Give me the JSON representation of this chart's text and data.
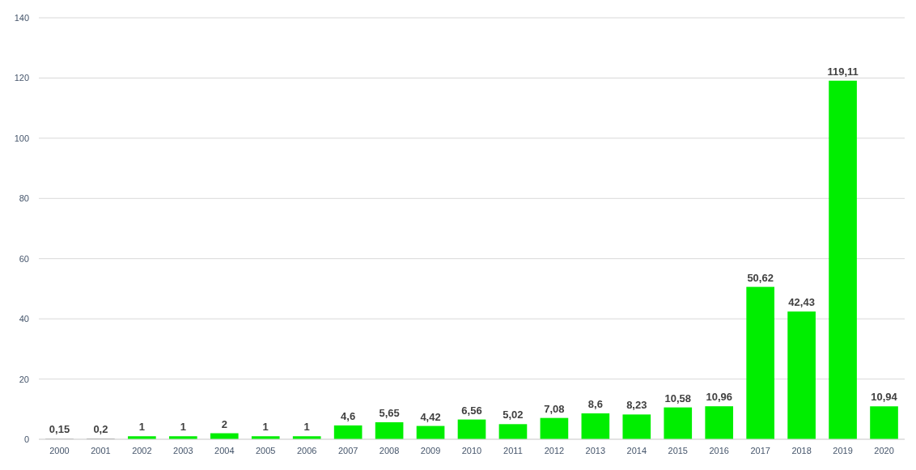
{
  "chart_data": {
    "type": "bar",
    "categories": [
      "2000",
      "2001",
      "2002",
      "2003",
      "2004",
      "2005",
      "2006",
      "2007",
      "2008",
      "2009",
      "2010",
      "2011",
      "2012",
      "2013",
      "2014",
      "2015",
      "2016",
      "2017",
      "2018",
      "2019",
      "2020"
    ],
    "values": [
      0.15,
      0.2,
      1,
      1,
      2,
      1,
      1,
      4.6,
      5.65,
      4.42,
      6.56,
      5.02,
      7.08,
      8.6,
      8.23,
      10.58,
      10.96,
      50.62,
      42.43,
      119.11,
      10.94
    ],
    "colors": [
      "#7f7f7f",
      "#7f7f7f",
      "#00ee00",
      "#00ee00",
      "#00ee00",
      "#00ee00",
      "#00ee00",
      "#00ee00",
      "#00ee00",
      "#00ee00",
      "#00ee00",
      "#00ee00",
      "#00ee00",
      "#00ee00",
      "#00ee00",
      "#00ee00",
      "#00ee00",
      "#00ee00",
      "#00ee00",
      "#00ee00",
      "#00ee00"
    ],
    "value_labels": [
      "0,15",
      "0,2",
      "1",
      "1",
      "2",
      "1",
      "1",
      "4,6",
      "5,65",
      "4,42",
      "6,56",
      "5,02",
      "7,08",
      "8,6",
      "8,23",
      "10,58",
      "10,96",
      "50,62",
      "42,43",
      "119,11",
      "10,94"
    ],
    "ylim": [
      0,
      140
    ],
    "yticks": [
      0,
      20,
      40,
      60,
      80,
      100,
      120,
      140
    ],
    "grid": "y"
  }
}
